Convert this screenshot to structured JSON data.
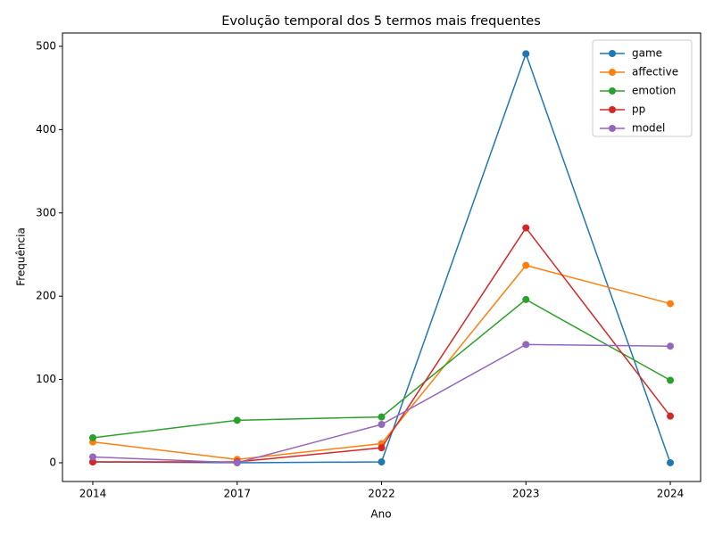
{
  "chart_data": {
    "type": "line",
    "title": "Evolução temporal dos 5 termos mais frequentes",
    "x_label": "Ano",
    "y_label": "Frequência",
    "categories": [
      "2014",
      "2017",
      "2022",
      "2023",
      "2024"
    ],
    "series": [
      {
        "name": "game",
        "color": "#1f77b4",
        "values": [
          1,
          0,
          1,
          491,
          0
        ]
      },
      {
        "name": "affective",
        "color": "#ff7f0e",
        "values": [
          25,
          4,
          23,
          237,
          191
        ]
      },
      {
        "name": "emotion",
        "color": "#2ca02c",
        "values": [
          30,
          51,
          55,
          196,
          99
        ]
      },
      {
        "name": "pp",
        "color": "#d62728",
        "values": [
          1,
          1,
          18,
          282,
          56
        ]
      },
      {
        "name": "model",
        "color": "#9467bd",
        "values": [
          7,
          0,
          46,
          142,
          140
        ]
      }
    ],
    "ylim": [
      -22.5,
      516
    ],
    "yticks": [
      0,
      100,
      200,
      300,
      400,
      500
    ],
    "grid": false,
    "legend": "upper right"
  }
}
